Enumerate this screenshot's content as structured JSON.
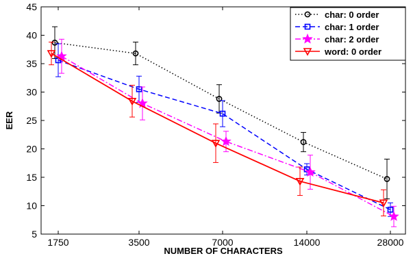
{
  "chart_data": {
    "type": "line",
    "title": "",
    "xlabel": "NUMBER OF CHARACTERS",
    "ylabel": "EER",
    "categories": [
      "1750",
      "3500",
      "7000",
      "14000",
      "28000"
    ],
    "ylim": [
      5,
      45
    ],
    "yticks": [
      5,
      10,
      15,
      20,
      25,
      30,
      35,
      40,
      45
    ],
    "grid": false,
    "legend_position": "top-right",
    "series": [
      {
        "name": "char: 0 order",
        "color": "#000000",
        "line_style": "dotted",
        "marker": "circle",
        "values": [
          38.7,
          36.8,
          28.8,
          21.2,
          14.7
        ],
        "errors": [
          2.8,
          2.0,
          2.5,
          1.7,
          3.5
        ]
      },
      {
        "name": "char: 1 order",
        "color": "#0000ff",
        "line_style": "dashed",
        "marker": "square",
        "values": [
          35.6,
          30.5,
          26.2,
          16.4,
          9.3
        ],
        "errors": [
          2.9,
          2.3,
          2.3,
          1.0,
          1.2
        ]
      },
      {
        "name": "char: 2 order",
        "color": "#ff00ff",
        "line_style": "dashdot",
        "marker": "star",
        "values": [
          36.3,
          28.0,
          21.3,
          15.9,
          8.1
        ],
        "errors": [
          3.0,
          2.9,
          1.8,
          3.0,
          1.8
        ]
      },
      {
        "name": "word: 0 order",
        "color": "#ff0000",
        "line_style": "solid",
        "marker": "triangle-down",
        "values": [
          36.8,
          28.4,
          21.0,
          14.3,
          10.5
        ],
        "errors": [
          2.0,
          2.8,
          3.4,
          2.5,
          2.3
        ]
      }
    ]
  }
}
